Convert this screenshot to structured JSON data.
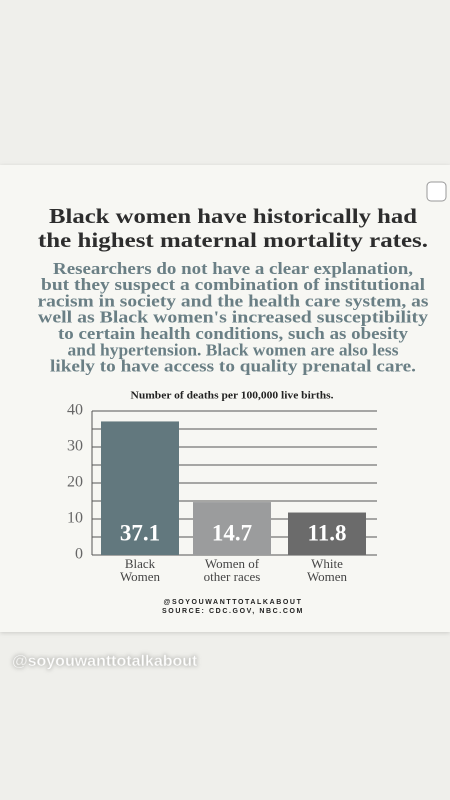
{
  "chart_data": {
    "type": "bar",
    "title": [
      "Black women have historically had",
      "the highest maternal mortality rates."
    ],
    "subtitle": [
      "Researchers do not have a clear explanation,",
      "but they suspect a combination of institutional",
      "racism in society and the health care system, as",
      "well as Black women's increased susceptibility",
      "to certain health conditions, such as obesity",
      "and hypertension. Black women are also less",
      "likely to have access to quality prenatal care."
    ],
    "y_label": "Number of deaths per 100,000 live births.",
    "categories": [
      [
        "Black",
        "Women"
      ],
      [
        "Women of",
        "other races"
      ],
      [
        "White",
        "Women"
      ]
    ],
    "values": [
      37.1,
      14.7,
      11.8
    ],
    "colors": [
      "#62787e",
      "#9b9c9d",
      "#6b6b6b"
    ],
    "ylim": [
      0,
      40
    ],
    "yticks": [
      0,
      10,
      20,
      30,
      40
    ],
    "minor_grid": [
      5,
      15,
      25,
      35
    ],
    "grid": true,
    "credit": "@SOYOUWANTTOTALKABOUT",
    "source": "SOURCE: CDC.GOV, NBC.COM"
  },
  "story_handle": "@soyouwanttotalkabout"
}
